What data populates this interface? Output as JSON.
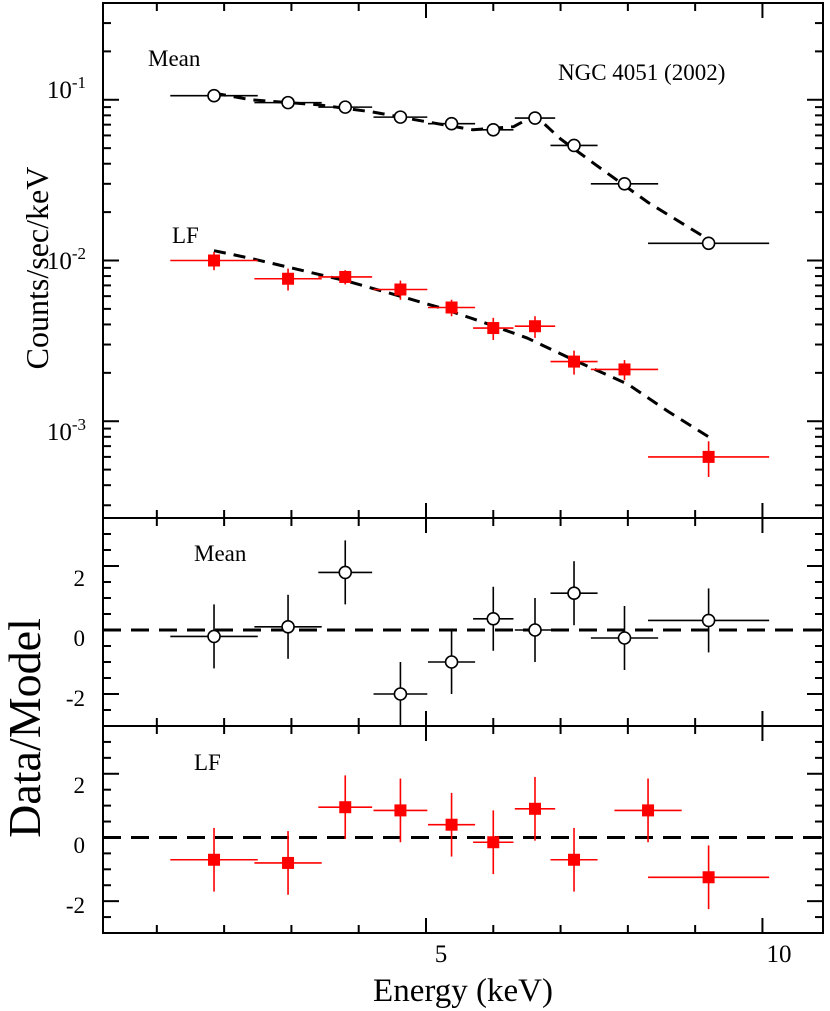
{
  "colors": {
    "mean": "#000000",
    "lf": "#ff0000",
    "model": "#000000"
  },
  "chart_data": [
    {
      "type": "scatter",
      "panel": "spectrum",
      "ylabel": "Counts/sec/keV",
      "title_annotation": "NGC 4051 (2002)",
      "yscale": "log",
      "ylim": [
        0.00025,
        0.4
      ],
      "xlim": [
        0.2,
        10.9
      ],
      "ytick_labels": [
        {
          "value": 0.1,
          "base": "10",
          "exp": "-1"
        },
        {
          "value": 0.01,
          "base": "10",
          "exp": "-2"
        },
        {
          "value": 0.001,
          "base": "10",
          "exp": "-3"
        }
      ],
      "series": [
        {
          "name": "Mean",
          "label": "Mean",
          "marker": "open-circle",
          "color": "#000000",
          "x": [
            1.85,
            2.95,
            3.8,
            4.62,
            5.38,
            6.0,
            6.62,
            7.2,
            7.95,
            9.2
          ],
          "x_err": [
            0.65,
            0.5,
            0.4,
            0.4,
            0.35,
            0.3,
            0.3,
            0.35,
            0.5,
            0.9
          ],
          "y": [
            0.106,
            0.096,
            0.09,
            0.078,
            0.071,
            0.065,
            0.077,
            0.052,
            0.03,
            0.0128
          ],
          "y_err": [
            0.003,
            0.003,
            0.003,
            0.003,
            0.003,
            0.003,
            0.003,
            0.002,
            0.0015,
            0.0008
          ]
        },
        {
          "name": "LF",
          "label": "LF",
          "marker": "filled-square",
          "color": "#ff0000",
          "x": [
            1.85,
            2.95,
            3.8,
            4.62,
            5.38,
            6.0,
            6.62,
            7.2,
            7.95,
            9.2
          ],
          "x_err": [
            0.65,
            0.5,
            0.4,
            0.4,
            0.35,
            0.3,
            0.3,
            0.35,
            0.5,
            0.9
          ],
          "y": [
            0.01,
            0.0077,
            0.0079,
            0.0066,
            0.0051,
            0.0038,
            0.0039,
            0.00235,
            0.0021,
            0.0006
          ],
          "y_err": [
            0.0013,
            0.0012,
            0.0008,
            0.0009,
            0.0006,
            0.0006,
            0.0006,
            0.0004,
            0.0003,
            0.00015
          ]
        }
      ],
      "models": [
        {
          "name": "Mean model",
          "x": [
            1.85,
            2.4,
            3.4,
            4.2,
            5.0,
            5.7,
            6.3,
            6.62,
            7.0,
            7.5,
            8.3,
            9.2
          ],
          "y": [
            0.11,
            0.1,
            0.093,
            0.084,
            0.073,
            0.065,
            0.068,
            0.08,
            0.057,
            0.04,
            0.023,
            0.0135
          ]
        },
        {
          "name": "LF model",
          "x": [
            1.85,
            2.4,
            3.0,
            3.8,
            4.5,
            5.2,
            5.8,
            6.5,
            7.2,
            8.0,
            8.6,
            9.2
          ],
          "y": [
            0.0115,
            0.0103,
            0.009,
            0.0075,
            0.0062,
            0.0051,
            0.0042,
            0.0033,
            0.0024,
            0.0017,
            0.00115,
            0.0008
          ]
        }
      ]
    },
    {
      "type": "scatter",
      "panel": "residual-mean",
      "label": "Mean",
      "ylim": [
        -3.0,
        3.5
      ],
      "yticks": [
        -2,
        0,
        2
      ],
      "ytick_labels": [
        "-2",
        "0",
        "2"
      ],
      "zero_line": 0,
      "series": [
        {
          "name": "Mean",
          "marker": "open-circle",
          "color": "#000000",
          "x": [
            1.85,
            2.95,
            3.8,
            4.62,
            5.38,
            6.0,
            6.62,
            7.2,
            7.95,
            9.2
          ],
          "x_err": [
            0.65,
            0.5,
            0.4,
            0.4,
            0.35,
            0.3,
            0.3,
            0.35,
            0.5,
            0.9
          ],
          "y": [
            -0.2,
            0.1,
            1.8,
            -2.0,
            -1.0,
            0.35,
            0.0,
            1.15,
            -0.25,
            0.3
          ],
          "y_err": [
            1.0,
            1.0,
            1.0,
            1.0,
            1.0,
            1.0,
            1.0,
            1.0,
            1.0,
            1.0
          ]
        }
      ]
    },
    {
      "type": "scatter",
      "panel": "residual-lf",
      "label": "LF",
      "ylim": [
        -3.0,
        3.5
      ],
      "yticks": [
        -2,
        0,
        2
      ],
      "ytick_labels": [
        "-2",
        "0",
        "2"
      ],
      "zero_line": 0,
      "xlabel": "Energy (keV)",
      "xtick_labels": [
        {
          "value": 5,
          "label": "5"
        },
        {
          "value": 10,
          "label": "10"
        }
      ],
      "series": [
        {
          "name": "LF",
          "marker": "filled-square",
          "color": "#ff0000",
          "x": [
            1.85,
            2.95,
            3.8,
            4.62,
            5.38,
            6.0,
            6.62,
            7.2,
            8.3,
            9.2
          ],
          "x_err": [
            0.65,
            0.5,
            0.4,
            0.4,
            0.35,
            0.3,
            0.3,
            0.35,
            0.5,
            0.9
          ],
          "y": [
            -0.7,
            -0.8,
            0.95,
            0.85,
            0.4,
            -0.15,
            0.9,
            -0.7,
            0.85,
            -1.25
          ],
          "y_err": [
            1.0,
            1.0,
            1.0,
            1.0,
            1.0,
            1.0,
            1.0,
            1.0,
            1.0,
            1.0
          ]
        }
      ]
    }
  ],
  "shared": {
    "ylabel_residual": "Data/Model"
  }
}
